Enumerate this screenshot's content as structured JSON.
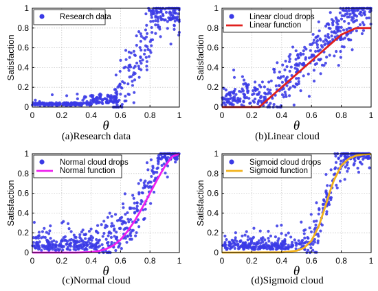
{
  "colors": {
    "drops": "#3a3ae6",
    "linear": "#e0201e",
    "normal": "#ee1fee",
    "sigmoid": "#f2b21c",
    "grid": "#c8c8c8"
  },
  "chart_data": [
    {
      "type": "scatter",
      "id": "research",
      "caption": "(a)Research data",
      "xlabel": "θ",
      "ylabel": "Satisfaction",
      "xlim": [
        0,
        1
      ],
      "ylim": [
        0,
        1
      ],
      "xticks": [
        "0",
        "0.2",
        "0.4",
        "0.6",
        "0.8",
        "1"
      ],
      "yticks": [
        "0",
        "0.2",
        "0.4",
        "0.6",
        "0.8",
        "1"
      ],
      "grid": true,
      "legend": "top-left",
      "series": [
        {
          "name": "Research data",
          "kind": "scatter",
          "generator": "research",
          "seed": 11
        }
      ]
    },
    {
      "type": "scatter",
      "id": "linear",
      "caption": "(b)Linear cloud",
      "xlabel": "θ",
      "ylabel": "Satisfaction",
      "xlim": [
        0,
        1
      ],
      "ylim": [
        0,
        1
      ],
      "xticks": [
        "0",
        "0.2",
        "0.4",
        "0.6",
        "0.8",
        "1"
      ],
      "yticks": [
        "0",
        "0.2",
        "0.4",
        "0.6",
        "0.8",
        "1"
      ],
      "grid": true,
      "legend": "top-left",
      "series": [
        {
          "name": "Linear cloud drops",
          "kind": "scatter",
          "generator": "linear",
          "seed": 23
        },
        {
          "name": "Linear function",
          "kind": "line",
          "color_key": "linear",
          "x": [
            0,
            0.1,
            0.2,
            0.25,
            0.3,
            0.4,
            0.5,
            0.6,
            0.7,
            0.8,
            0.9,
            1.0
          ],
          "y": [
            0,
            0,
            0,
            0.0,
            0.067,
            0.2,
            0.333,
            0.467,
            0.6,
            0.733,
            0.8,
            0.8
          ]
        }
      ]
    },
    {
      "type": "scatter",
      "id": "normal",
      "caption": "(c)Normal cloud",
      "xlabel": "θ",
      "ylabel": "Satisfaction",
      "xlim": [
        0,
        1
      ],
      "ylim": [
        0,
        1
      ],
      "xticks": [
        "0",
        "0.2",
        "0.4",
        "0.6",
        "0.8",
        "1"
      ],
      "yticks": [
        "0",
        "0.2",
        "0.4",
        "0.6",
        "0.8",
        "1"
      ],
      "grid": true,
      "legend": "top-left",
      "series": [
        {
          "name": "Normal cloud drops",
          "kind": "scatter",
          "generator": "normal",
          "seed": 37
        },
        {
          "name": "Normal function",
          "kind": "line",
          "color_key": "normal",
          "x": [
            0,
            0.3,
            0.4,
            0.45,
            0.5,
            0.55,
            0.6,
            0.65,
            0.7,
            0.75,
            0.8,
            0.85,
            0.9,
            0.95,
            1.0
          ],
          "y": [
            0,
            0,
            0.005,
            0.015,
            0.035,
            0.07,
            0.13,
            0.22,
            0.33,
            0.46,
            0.6,
            0.74,
            0.87,
            0.97,
            1.0
          ]
        }
      ]
    },
    {
      "type": "scatter",
      "id": "sigmoid",
      "caption": "(d)Sigmoid cloud",
      "xlabel": "θ",
      "ylabel": "Satisfaction",
      "xlim": [
        0,
        1
      ],
      "ylim": [
        0,
        1
      ],
      "xticks": [
        "0",
        "0.2",
        "0.4",
        "0.6",
        "0.8",
        "1"
      ],
      "yticks": [
        "0",
        "0.2",
        "0.4",
        "0.6",
        "0.8",
        "1"
      ],
      "grid": true,
      "legend": "top-left",
      "series": [
        {
          "name": "Sigmoid cloud drops",
          "kind": "scatter",
          "generator": "sigmoid",
          "seed": 53
        },
        {
          "name": "Sigmoid function",
          "kind": "line",
          "color_key": "sigmoid",
          "x": [
            0,
            0.4,
            0.5,
            0.55,
            0.6,
            0.65,
            0.7,
            0.72,
            0.75,
            0.8,
            0.85,
            0.9,
            0.95,
            1.0
          ],
          "y": [
            0,
            0.002,
            0.018,
            0.047,
            0.12,
            0.27,
            0.5,
            0.6,
            0.73,
            0.88,
            0.95,
            0.982,
            0.993,
            0.997
          ]
        }
      ]
    }
  ]
}
